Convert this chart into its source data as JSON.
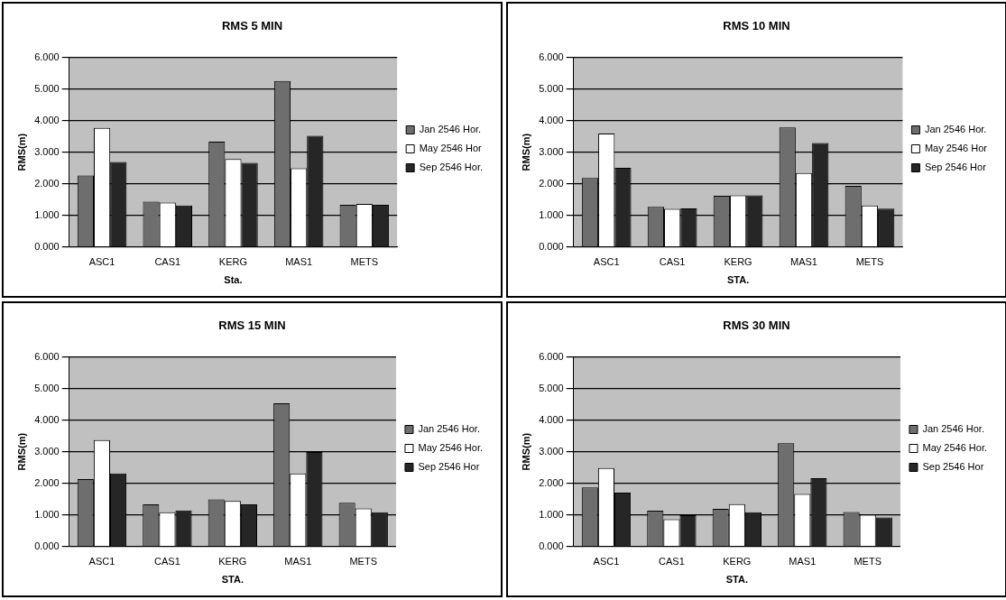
{
  "chart_data": [
    {
      "type": "bar",
      "title": "RMS 5 MIN",
      "xlabel": "Sta.",
      "ylabel": "RMS(m)",
      "categories": [
        "ASC1",
        "CAS1",
        "KERG",
        "MAS1",
        "METS"
      ],
      "series": [
        {
          "name": "Jan 2546 Hor.",
          "color": "#6e6e6e",
          "values": [
            2.26,
            1.43,
            3.33,
            5.25,
            1.33
          ]
        },
        {
          "name": "May 2546 Hor",
          "color": "#ffffff",
          "values": [
            3.77,
            1.4,
            2.78,
            2.49,
            1.36
          ]
        },
        {
          "name": "Sep 2546 Hor.",
          "color": "#262626",
          "values": [
            2.69,
            1.31,
            2.66,
            3.52,
            1.33
          ]
        }
      ],
      "ylim": [
        0,
        6
      ],
      "yticks": [
        {
          "value": 0,
          "label": "0.000"
        },
        {
          "value": 1,
          "label": "1.000"
        },
        {
          "value": 2,
          "label": "2.000"
        },
        {
          "value": 3,
          "label": "3.000"
        },
        {
          "value": 4,
          "label": "4.000"
        },
        {
          "value": 5,
          "label": "5.000"
        },
        {
          "value": 6,
          "label": "6.000"
        }
      ],
      "grid": "y",
      "legend": "right"
    },
    {
      "type": "bar",
      "title": "RMS 10 MIN",
      "xlabel": "STA.",
      "ylabel": "RMS(m)",
      "categories": [
        "ASC1",
        "CAS1",
        "KERG",
        "MAS1",
        "METS"
      ],
      "series": [
        {
          "name": "Jan 2546 Hor.",
          "color": "#6e6e6e",
          "values": [
            2.18,
            1.27,
            1.62,
            3.78,
            1.93
          ]
        },
        {
          "name": "May 2546 Hor",
          "color": "#ffffff",
          "values": [
            3.59,
            1.2,
            1.63,
            2.34,
            1.31
          ]
        },
        {
          "name": "Sep 2546 Hor",
          "color": "#262626",
          "values": [
            2.5,
            1.22,
            1.63,
            3.29,
            1.21
          ]
        }
      ],
      "ylim": [
        0,
        6
      ],
      "yticks": [
        {
          "value": 0,
          "label": "0.000"
        },
        {
          "value": 1,
          "label": "1.000"
        },
        {
          "value": 2,
          "label": "2.000"
        },
        {
          "value": 3,
          "label": "3.000"
        },
        {
          "value": 4,
          "label": "4.000"
        },
        {
          "value": 5,
          "label": "5.000"
        },
        {
          "value": 6,
          "label": "6.000"
        }
      ],
      "grid": "y",
      "legend": "right"
    },
    {
      "type": "bar",
      "title": "RMS 15 MIN",
      "xlabel": "STA.",
      "ylabel": "RMS(m)",
      "categories": [
        "ASC1",
        "CAS1",
        "KERG",
        "MAS1",
        "METS"
      ],
      "series": [
        {
          "name": "Jan 2546 Hor.",
          "color": "#6e6e6e",
          "values": [
            2.13,
            1.33,
            1.49,
            4.53,
            1.38
          ]
        },
        {
          "name": "May 2546 Hor.",
          "color": "#ffffff",
          "values": [
            3.37,
            1.08,
            1.44,
            2.31,
            1.2
          ]
        },
        {
          "name": "Sep 2546 Hor",
          "color": "#262626",
          "values": [
            2.31,
            1.14,
            1.33,
            2.99,
            1.08
          ]
        }
      ],
      "ylim": [
        0,
        6
      ],
      "yticks": [
        {
          "value": 0,
          "label": "0.000"
        },
        {
          "value": 1,
          "label": "1.000"
        },
        {
          "value": 2,
          "label": "2.000"
        },
        {
          "value": 3,
          "label": "3.000"
        },
        {
          "value": 4,
          "label": "4.000"
        },
        {
          "value": 5,
          "label": "5.000"
        },
        {
          "value": 6,
          "label": "6.000"
        }
      ],
      "grid": "y",
      "legend": "right"
    },
    {
      "type": "bar",
      "title": "RMS 30 MIN",
      "xlabel": "STA.",
      "ylabel": "RMS(m)",
      "categories": [
        "ASC1",
        "CAS1",
        "KERG",
        "MAS1",
        "METS"
      ],
      "series": [
        {
          "name": "Jan 2546 Hor.",
          "color": "#6e6e6e",
          "values": [
            1.87,
            1.13,
            1.19,
            3.27,
            1.09
          ]
        },
        {
          "name": "May 2546 Hor.",
          "color": "#ffffff",
          "values": [
            2.48,
            0.86,
            1.34,
            1.66,
            1.0
          ]
        },
        {
          "name": "Sep 2546 Hor",
          "color": "#262626",
          "values": [
            1.7,
            0.99,
            1.08,
            2.16,
            0.92
          ]
        }
      ],
      "ylim": [
        0,
        6
      ],
      "yticks": [
        {
          "value": 0,
          "label": "0.000"
        },
        {
          "value": 1,
          "label": "1.000"
        },
        {
          "value": 2,
          "label": "2.000"
        },
        {
          "value": 3,
          "label": "3.000"
        },
        {
          "value": 4,
          "label": "4.000"
        },
        {
          "value": 5,
          "label": "5.000"
        },
        {
          "value": 6,
          "label": "6.000"
        }
      ],
      "grid": "y",
      "legend": "right"
    }
  ]
}
